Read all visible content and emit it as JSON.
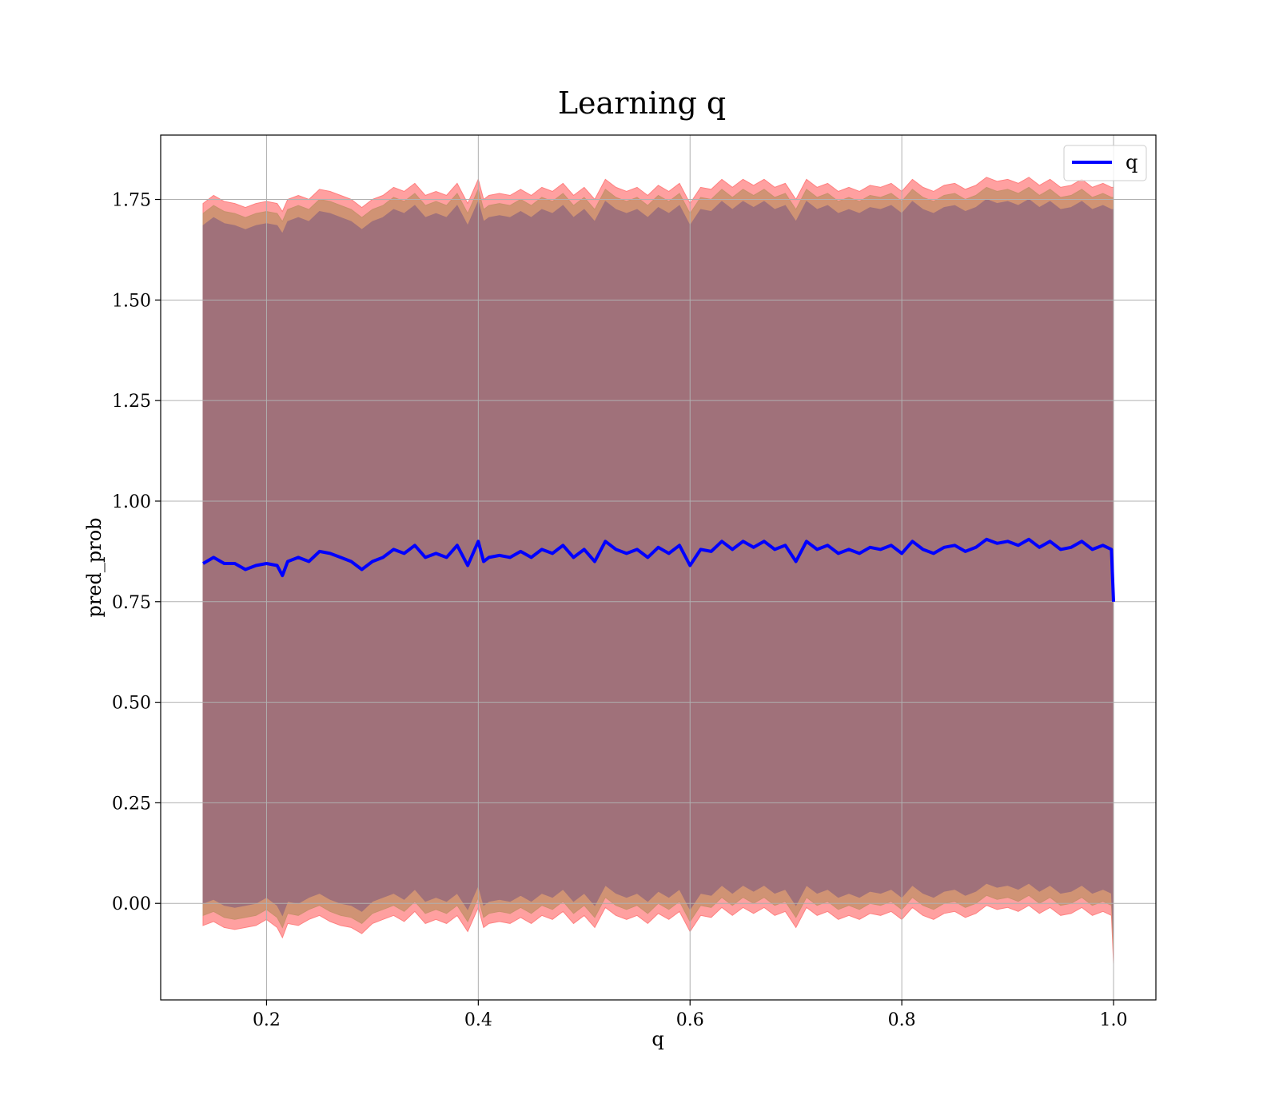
{
  "chart_data": {
    "type": "line",
    "title": "Learning q",
    "xlabel": "q",
    "ylabel": "pred_prob",
    "xlim": [
      0.1,
      1.04
    ],
    "ylim": [
      -0.24,
      1.91
    ],
    "x_ticks": [
      0.2,
      0.4,
      0.6,
      0.8,
      1.0
    ],
    "x_tick_labels": [
      "0.2",
      "0.4",
      "0.6",
      "0.8",
      "1.0"
    ],
    "y_ticks": [
      0.0,
      0.25,
      0.5,
      0.75,
      1.0,
      1.25,
      1.5,
      1.75
    ],
    "y_tick_labels": [
      "0.00",
      "0.25",
      "0.50",
      "0.75",
      "1.00",
      "1.25",
      "1.50",
      "1.75"
    ],
    "grid": true,
    "legend": {
      "placement": "upper-right",
      "entries": [
        "q"
      ]
    },
    "colors": {
      "line": "#0000ff",
      "band_outer": "#ff8080",
      "band_mid": "#c8906c",
      "band_inner": "#a0717a",
      "grid": "#b0b0b0"
    },
    "series": [
      {
        "name": "q",
        "x": [
          0.14,
          0.15,
          0.16,
          0.17,
          0.18,
          0.19,
          0.2,
          0.21,
          0.215,
          0.22,
          0.23,
          0.24,
          0.25,
          0.26,
          0.27,
          0.28,
          0.29,
          0.3,
          0.31,
          0.32,
          0.33,
          0.34,
          0.35,
          0.36,
          0.37,
          0.38,
          0.39,
          0.4,
          0.405,
          0.41,
          0.42,
          0.43,
          0.44,
          0.45,
          0.46,
          0.47,
          0.48,
          0.49,
          0.5,
          0.51,
          0.52,
          0.53,
          0.54,
          0.55,
          0.56,
          0.57,
          0.58,
          0.59,
          0.6,
          0.61,
          0.62,
          0.63,
          0.64,
          0.65,
          0.66,
          0.67,
          0.68,
          0.69,
          0.7,
          0.71,
          0.72,
          0.73,
          0.74,
          0.75,
          0.76,
          0.77,
          0.78,
          0.79,
          0.8,
          0.81,
          0.82,
          0.83,
          0.84,
          0.85,
          0.86,
          0.87,
          0.88,
          0.89,
          0.9,
          0.91,
          0.92,
          0.93,
          0.94,
          0.95,
          0.96,
          0.97,
          0.98,
          0.99,
          0.998,
          1.0
        ],
        "y": [
          0.845,
          0.86,
          0.845,
          0.845,
          0.83,
          0.84,
          0.845,
          0.84,
          0.815,
          0.85,
          0.86,
          0.85,
          0.875,
          0.87,
          0.86,
          0.85,
          0.83,
          0.85,
          0.86,
          0.88,
          0.87,
          0.89,
          0.86,
          0.87,
          0.86,
          0.89,
          0.84,
          0.9,
          0.85,
          0.86,
          0.865,
          0.86,
          0.875,
          0.86,
          0.88,
          0.87,
          0.89,
          0.86,
          0.88,
          0.85,
          0.9,
          0.88,
          0.87,
          0.88,
          0.86,
          0.885,
          0.87,
          0.89,
          0.84,
          0.88,
          0.875,
          0.9,
          0.88,
          0.9,
          0.885,
          0.9,
          0.88,
          0.89,
          0.85,
          0.9,
          0.88,
          0.89,
          0.87,
          0.88,
          0.87,
          0.885,
          0.88,
          0.89,
          0.87,
          0.9,
          0.88,
          0.87,
          0.885,
          0.89,
          0.875,
          0.885,
          0.905,
          0.895,
          0.9,
          0.89,
          0.905,
          0.885,
          0.9,
          0.88,
          0.885,
          0.9,
          0.88,
          0.89,
          0.88,
          0.75
        ]
      }
    ],
    "bands": [
      {
        "lower": [
          -0.055,
          -0.045,
          -0.06,
          -0.065,
          -0.06,
          -0.055,
          -0.04,
          -0.06,
          -0.085,
          -0.05,
          -0.055,
          -0.04,
          -0.03,
          -0.045,
          -0.055,
          -0.06,
          -0.075,
          -0.05,
          -0.04,
          -0.03,
          -0.045,
          -0.02,
          -0.05,
          -0.04,
          -0.05,
          -0.03,
          -0.07,
          -0.01,
          -0.06,
          -0.05,
          -0.045,
          -0.05,
          -0.035,
          -0.05,
          -0.03,
          -0.04,
          -0.02,
          -0.05,
          -0.03,
          -0.06,
          -0.01,
          -0.03,
          -0.04,
          -0.03,
          -0.05,
          -0.025,
          -0.04,
          -0.02,
          -0.07,
          -0.03,
          -0.035,
          -0.01,
          -0.03,
          -0.01,
          -0.025,
          -0.01,
          -0.03,
          -0.02,
          -0.06,
          -0.01,
          -0.03,
          -0.02,
          -0.04,
          -0.03,
          -0.04,
          -0.025,
          -0.03,
          -0.02,
          -0.04,
          -0.01,
          -0.03,
          -0.04,
          -0.025,
          -0.02,
          -0.035,
          -0.025,
          -0.005,
          -0.015,
          -0.01,
          -0.02,
          -0.005,
          -0.025,
          -0.01,
          -0.03,
          -0.025,
          -0.01,
          -0.03,
          -0.02,
          -0.03,
          -0.15
        ],
        "upper": [
          1.74,
          1.76,
          1.745,
          1.74,
          1.73,
          1.74,
          1.745,
          1.74,
          1.72,
          1.75,
          1.76,
          1.75,
          1.775,
          1.77,
          1.76,
          1.75,
          1.73,
          1.75,
          1.76,
          1.78,
          1.77,
          1.79,
          1.76,
          1.77,
          1.76,
          1.79,
          1.74,
          1.8,
          1.75,
          1.76,
          1.765,
          1.76,
          1.775,
          1.76,
          1.78,
          1.77,
          1.79,
          1.76,
          1.78,
          1.75,
          1.8,
          1.78,
          1.77,
          1.78,
          1.76,
          1.785,
          1.77,
          1.79,
          1.74,
          1.78,
          1.775,
          1.8,
          1.78,
          1.8,
          1.785,
          1.8,
          1.78,
          1.79,
          1.75,
          1.8,
          1.78,
          1.79,
          1.77,
          1.78,
          1.77,
          1.785,
          1.78,
          1.79,
          1.77,
          1.8,
          1.78,
          1.77,
          1.785,
          1.79,
          1.775,
          1.785,
          1.805,
          1.795,
          1.8,
          1.79,
          1.805,
          1.785,
          1.8,
          1.78,
          1.785,
          1.8,
          1.78,
          1.79,
          1.78,
          1.78
        ]
      },
      {
        "lower": [
          -0.03,
          -0.02,
          -0.035,
          -0.04,
          -0.035,
          -0.03,
          -0.015,
          -0.035,
          -0.06,
          -0.025,
          -0.03,
          -0.015,
          -0.005,
          -0.02,
          -0.03,
          -0.035,
          -0.05,
          -0.025,
          -0.015,
          -0.005,
          -0.02,
          0.005,
          -0.025,
          -0.015,
          -0.025,
          -0.005,
          -0.045,
          0.015,
          -0.035,
          -0.025,
          -0.02,
          -0.025,
          -0.01,
          -0.025,
          -0.005,
          -0.015,
          0.005,
          -0.025,
          -0.005,
          -0.035,
          0.015,
          -0.005,
          -0.015,
          -0.005,
          -0.025,
          0.0,
          -0.015,
          0.005,
          -0.045,
          -0.005,
          -0.01,
          0.015,
          -0.005,
          0.015,
          0.0,
          0.015,
          -0.005,
          0.005,
          -0.035,
          0.015,
          -0.005,
          0.005,
          -0.015,
          -0.005,
          -0.015,
          0.0,
          -0.005,
          0.005,
          -0.015,
          0.015,
          -0.005,
          -0.015,
          0.0,
          0.005,
          -0.01,
          0.0,
          0.02,
          0.01,
          0.015,
          0.005,
          0.02,
          0.0,
          0.015,
          -0.005,
          0.0,
          0.015,
          -0.005,
          0.005,
          -0.005,
          -0.12
        ],
        "upper": [
          1.715,
          1.735,
          1.72,
          1.715,
          1.705,
          1.715,
          1.72,
          1.715,
          1.695,
          1.725,
          1.735,
          1.725,
          1.75,
          1.745,
          1.735,
          1.725,
          1.705,
          1.725,
          1.735,
          1.755,
          1.745,
          1.765,
          1.735,
          1.745,
          1.735,
          1.765,
          1.715,
          1.775,
          1.725,
          1.735,
          1.74,
          1.735,
          1.75,
          1.735,
          1.755,
          1.745,
          1.765,
          1.735,
          1.755,
          1.725,
          1.775,
          1.755,
          1.745,
          1.755,
          1.735,
          1.76,
          1.745,
          1.765,
          1.715,
          1.755,
          1.75,
          1.775,
          1.755,
          1.775,
          1.76,
          1.775,
          1.755,
          1.765,
          1.725,
          1.775,
          1.755,
          1.765,
          1.745,
          1.755,
          1.745,
          1.76,
          1.755,
          1.765,
          1.745,
          1.775,
          1.755,
          1.745,
          1.76,
          1.765,
          1.75,
          1.76,
          1.78,
          1.77,
          1.775,
          1.765,
          1.78,
          1.76,
          1.775,
          1.755,
          1.76,
          1.775,
          1.755,
          1.765,
          1.755,
          1.755
        ]
      },
      {
        "lower": [
          0.0,
          0.01,
          -0.005,
          -0.01,
          -0.005,
          0.0,
          0.015,
          -0.005,
          -0.03,
          0.005,
          0.0,
          0.015,
          0.025,
          0.01,
          0.0,
          -0.005,
          -0.02,
          0.005,
          0.015,
          0.025,
          0.01,
          0.035,
          0.005,
          0.015,
          0.005,
          0.025,
          -0.015,
          0.045,
          -0.005,
          0.005,
          0.01,
          0.005,
          0.02,
          0.005,
          0.025,
          0.015,
          0.035,
          0.005,
          0.025,
          -0.005,
          0.045,
          0.025,
          0.015,
          0.025,
          0.005,
          0.03,
          0.015,
          0.035,
          -0.015,
          0.025,
          0.02,
          0.045,
          0.025,
          0.045,
          0.03,
          0.045,
          0.025,
          0.035,
          -0.005,
          0.045,
          0.025,
          0.035,
          0.015,
          0.025,
          0.015,
          0.03,
          0.025,
          0.035,
          0.015,
          0.045,
          0.025,
          0.015,
          0.03,
          0.035,
          0.02,
          0.03,
          0.05,
          0.04,
          0.045,
          0.035,
          0.05,
          0.03,
          0.045,
          0.025,
          0.03,
          0.045,
          0.025,
          0.035,
          0.025,
          -0.09
        ],
        "upper": [
          1.685,
          1.705,
          1.69,
          1.685,
          1.675,
          1.685,
          1.69,
          1.685,
          1.665,
          1.695,
          1.705,
          1.695,
          1.72,
          1.715,
          1.705,
          1.695,
          1.675,
          1.695,
          1.705,
          1.725,
          1.715,
          1.735,
          1.705,
          1.715,
          1.705,
          1.735,
          1.685,
          1.745,
          1.695,
          1.705,
          1.71,
          1.705,
          1.72,
          1.705,
          1.725,
          1.715,
          1.735,
          1.705,
          1.725,
          1.695,
          1.745,
          1.725,
          1.715,
          1.725,
          1.705,
          1.73,
          1.715,
          1.735,
          1.685,
          1.725,
          1.72,
          1.745,
          1.725,
          1.745,
          1.73,
          1.745,
          1.725,
          1.735,
          1.695,
          1.745,
          1.725,
          1.735,
          1.715,
          1.725,
          1.715,
          1.73,
          1.725,
          1.735,
          1.715,
          1.745,
          1.725,
          1.715,
          1.73,
          1.735,
          1.72,
          1.73,
          1.75,
          1.74,
          1.745,
          1.735,
          1.75,
          1.73,
          1.745,
          1.725,
          1.73,
          1.745,
          1.725,
          1.735,
          1.725,
          1.725
        ]
      }
    ]
  }
}
